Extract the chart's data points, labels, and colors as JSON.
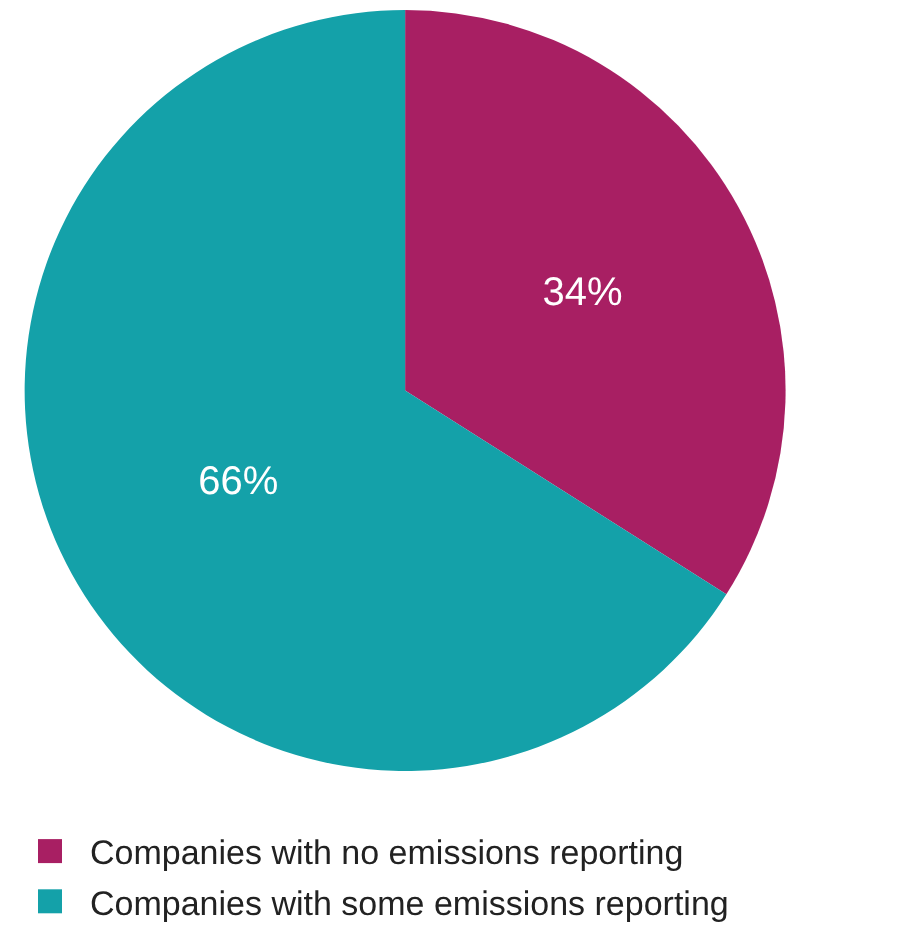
{
  "chart_data": {
    "type": "pie",
    "categories": [
      "Companies with no emissions reporting",
      "Companies with some emissions reporting"
    ],
    "values": [
      34,
      66
    ],
    "colors": [
      "#a81f63",
      "#14a1a9"
    ],
    "value_labels": [
      "34%",
      "66%"
    ],
    "legend": "bottom"
  }
}
